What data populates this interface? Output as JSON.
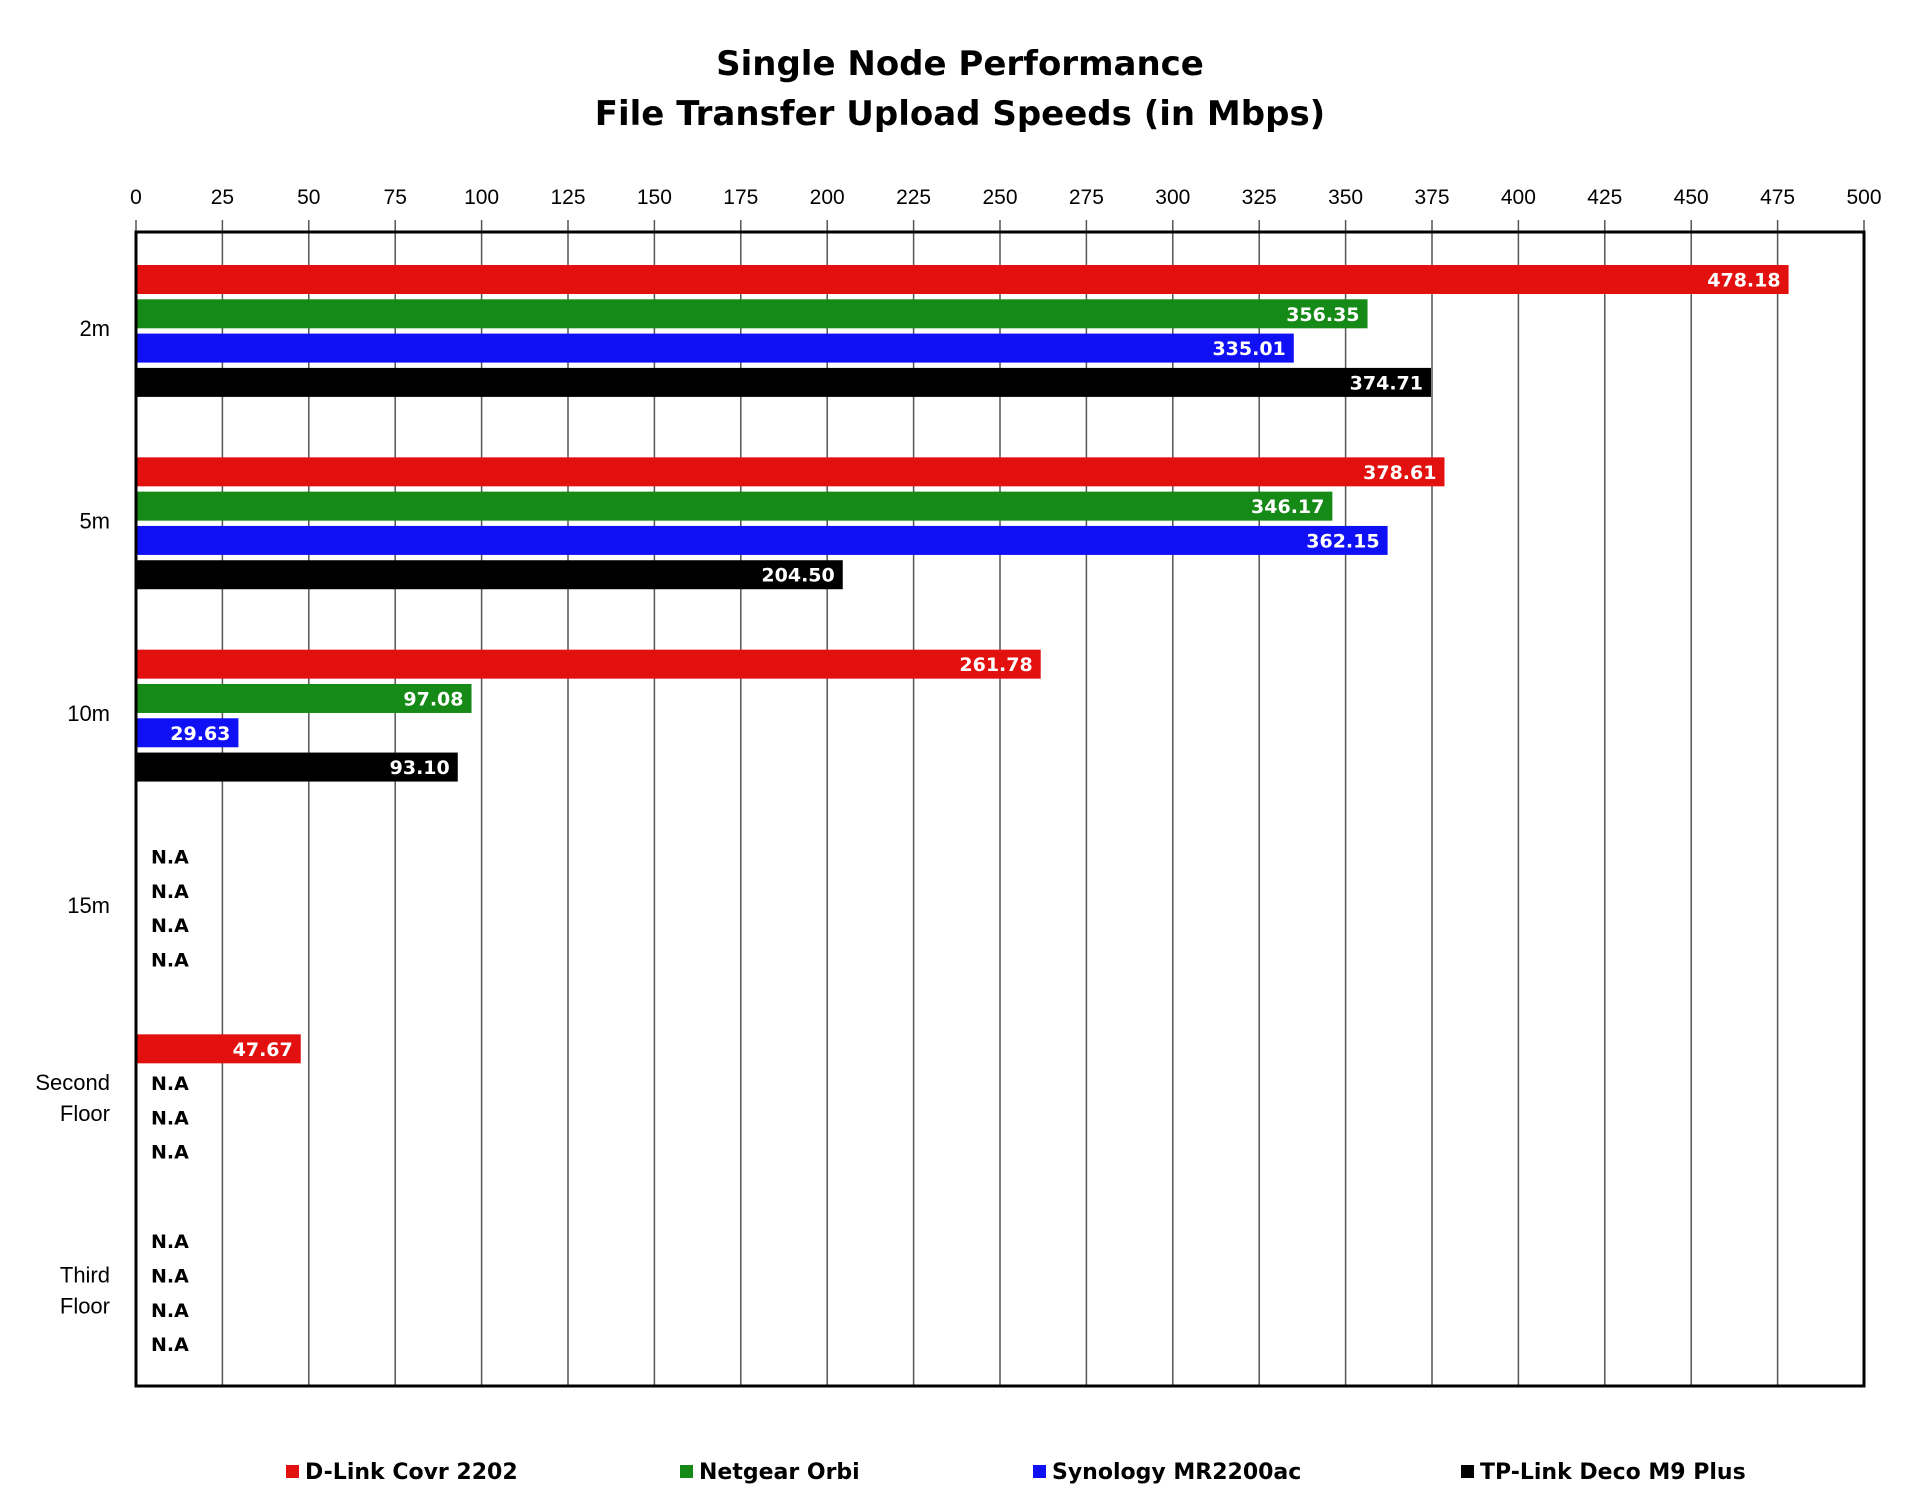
{
  "chart_data": {
    "type": "bar",
    "orientation": "horizontal",
    "title": "Single Node Performance",
    "subtitle": "File Transfer Upload Speeds (in Mbps)",
    "xlabel": "",
    "ylabel": "",
    "xlim": [
      0,
      500
    ],
    "tick_step": 25,
    "x_axis_position": "top",
    "grid": true,
    "legend_position": "bottom",
    "categories": [
      "2m",
      "5m",
      "10m",
      "15m",
      "Second Floor",
      "Third Floor"
    ],
    "missing_label": "N.A",
    "series": [
      {
        "name": "D-Link Covr 2202",
        "color": "#e31010",
        "values": [
          478.18,
          378.61,
          261.78,
          null,
          47.67,
          null
        ],
        "labels": [
          "478.18",
          "378.61",
          "261.78",
          "N.A",
          "47.67",
          "N.A"
        ]
      },
      {
        "name": "Netgear Orbi",
        "color": "#168a16",
        "values": [
          356.35,
          346.17,
          97.08,
          null,
          null,
          null
        ],
        "labels": [
          "356.35",
          "346.17",
          "97.08",
          "N.A",
          "N.A",
          "N.A"
        ]
      },
      {
        "name": "Synology MR2200ac",
        "color": "#1010f5",
        "values": [
          335.01,
          362.15,
          29.63,
          null,
          null,
          null
        ],
        "labels": [
          "335.01",
          "362.15",
          "29.63",
          "N.A",
          "N.A",
          "N.A"
        ]
      },
      {
        "name": "TP-Link Deco M9 Plus",
        "color": "#000000",
        "values": [
          374.71,
          204.5,
          93.1,
          null,
          null,
          null
        ],
        "labels": [
          "374.71",
          "204.50",
          "93.10",
          "N.A",
          "N.A",
          "N.A"
        ]
      }
    ]
  }
}
